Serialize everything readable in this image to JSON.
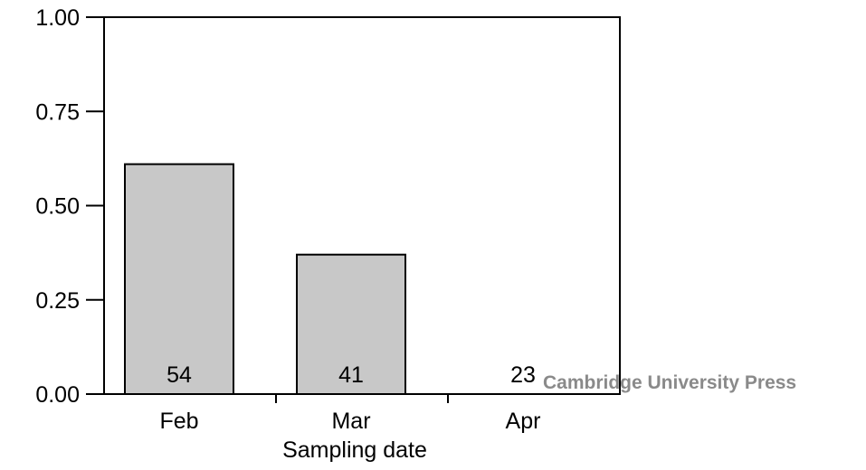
{
  "chart_data": {
    "type": "bar",
    "categories": [
      "Feb",
      "Mar",
      "Apr"
    ],
    "values": [
      0.61,
      0.37,
      0.0
    ],
    "bar_labels": [
      "54",
      "41",
      "23"
    ],
    "title": "",
    "xlabel": "Sampling date",
    "ylabel": "",
    "ylim": [
      0,
      1
    ],
    "yticks": [
      "0.00",
      "0.25",
      "0.50",
      "0.75",
      "1.00"
    ],
    "grid": false,
    "colors": {
      "bar_fill": "#c8c8c8",
      "bar_stroke": "#000000"
    }
  },
  "watermark": "Cambridge University Press"
}
